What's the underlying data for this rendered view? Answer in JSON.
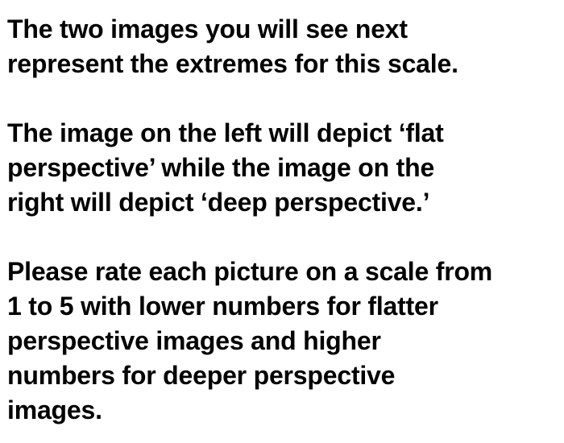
{
  "instructions": {
    "paragraph_1": [
      "The two images you will see next",
      "represent the extremes for this scale."
    ],
    "paragraph_2": [
      "The image on the left will depict ‘flat",
      "perspective’ while the image on the",
      "right will depict ‘deep perspective.’"
    ],
    "paragraph_3": [
      "Please rate each picture on a scale from",
      "1 to 5 with lower numbers for flatter",
      "perspective images and higher",
      "numbers for deeper perspective",
      "images."
    ]
  }
}
